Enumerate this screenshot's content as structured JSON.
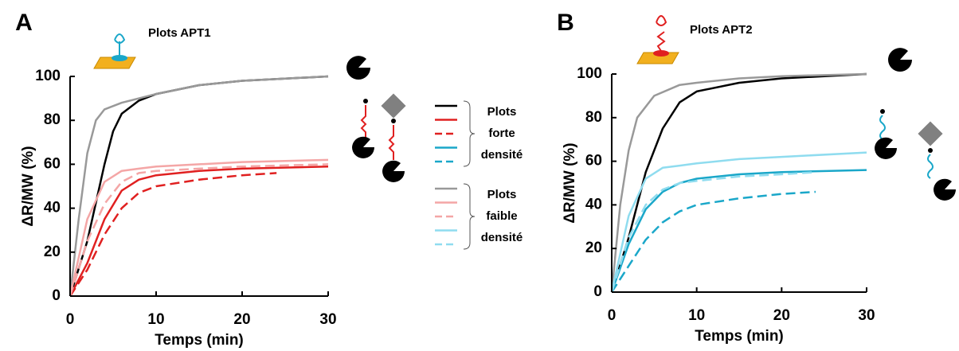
{
  "chart_data": [
    {
      "type": "line",
      "panel": "A",
      "title": "Plots APT1",
      "x_label": "Temps (min)",
      "y_label": "ΔR/MW (%)",
      "xlim": [
        0,
        30
      ],
      "ylim": [
        0,
        100
      ],
      "xticks": [
        0,
        10,
        20,
        30
      ],
      "yticks": [
        0,
        20,
        40,
        60,
        80,
        100
      ],
      "series": [
        {
          "color": "#000000",
          "dash": false,
          "x": [
            0,
            2,
            4,
            5,
            6,
            8,
            10,
            15,
            20,
            25,
            30
          ],
          "values": [
            0,
            25,
            60,
            75,
            83,
            89,
            92,
            96,
            98,
            99,
            100
          ]
        },
        {
          "color": "#e02020",
          "dash": false,
          "x": [
            0,
            2,
            4,
            6,
            8,
            10,
            15,
            20,
            30
          ],
          "values": [
            0,
            15,
            35,
            48,
            53,
            55,
            57,
            58,
            59
          ]
        },
        {
          "color": "#e02020",
          "dash": true,
          "x": [
            0,
            2,
            4,
            6,
            8,
            10,
            15,
            20,
            24
          ],
          "values": [
            0,
            12,
            28,
            40,
            47,
            50,
            53,
            55,
            56
          ]
        },
        {
          "color": "#999999",
          "dash": false,
          "x": [
            0,
            1,
            2,
            3,
            4,
            6,
            8,
            10,
            15,
            20,
            30
          ],
          "values": [
            0,
            35,
            65,
            80,
            85,
            88,
            90,
            92,
            96,
            98,
            100
          ]
        },
        {
          "color": "#f4a6a6",
          "dash": false,
          "x": [
            0,
            2,
            4,
            6,
            8,
            10,
            15,
            20,
            30
          ],
          "values": [
            0,
            35,
            52,
            57,
            58,
            59,
            60,
            61,
            62
          ]
        },
        {
          "color": "#f4a6a6",
          "dash": true,
          "x": [
            0,
            2,
            4,
            6,
            8,
            10,
            15,
            20,
            30
          ],
          "values": [
            0,
            25,
            42,
            52,
            56,
            57,
            58,
            59,
            60
          ]
        }
      ]
    },
    {
      "type": "line",
      "panel": "B",
      "title": "Plots APT2",
      "x_label": "Temps (min)",
      "y_label": "ΔR/MW (%)",
      "xlim": [
        0,
        30
      ],
      "ylim": [
        0,
        100
      ],
      "xticks": [
        0,
        10,
        20,
        30
      ],
      "yticks": [
        0,
        20,
        40,
        60,
        80,
        100
      ],
      "series": [
        {
          "color": "#000000",
          "dash": false,
          "x": [
            0,
            2,
            4,
            6,
            8,
            10,
            15,
            20,
            30
          ],
          "values": [
            0,
            25,
            55,
            75,
            87,
            92,
            96,
            98,
            100
          ]
        },
        {
          "color": "#999999",
          "dash": false,
          "x": [
            0,
            1,
            2,
            3,
            5,
            8,
            10,
            15,
            20,
            30
          ],
          "values": [
            0,
            40,
            65,
            80,
            90,
            95,
            96,
            98,
            99,
            100
          ]
        },
        {
          "color": "#1aa7c9",
          "dash": false,
          "x": [
            0,
            2,
            4,
            6,
            8,
            10,
            15,
            20,
            30
          ],
          "values": [
            0,
            22,
            38,
            46,
            50,
            52,
            54,
            55,
            56
          ]
        },
        {
          "color": "#1aa7c9",
          "dash": true,
          "x": [
            0,
            2,
            4,
            6,
            8,
            10,
            15,
            20,
            24
          ],
          "values": [
            0,
            12,
            24,
            32,
            37,
            40,
            43,
            45,
            46
          ]
        },
        {
          "color": "#8fdcef",
          "dash": false,
          "x": [
            0,
            2,
            4,
            6,
            8,
            10,
            15,
            20,
            30
          ],
          "values": [
            0,
            35,
            52,
            57,
            58,
            59,
            61,
            62,
            64
          ]
        },
        {
          "color": "#8fdcef",
          "dash": true,
          "x": [
            0,
            2,
            4,
            6,
            8,
            10,
            15,
            20,
            24
          ],
          "values": [
            0,
            25,
            40,
            47,
            50,
            51,
            53,
            54,
            55
          ]
        }
      ]
    }
  ],
  "legend": {
    "groups": [
      {
        "lines": [
          "Plots",
          "forte",
          "densité"
        ],
        "entries": [
          {
            "color": "#000000",
            "dash": false
          },
          {
            "color": "#e02020",
            "dash": false
          },
          {
            "color": "#e02020",
            "dash": true
          },
          {
            "color": "#1aa7c9",
            "dash": false
          },
          {
            "color": "#1aa7c9",
            "dash": true
          }
        ]
      },
      {
        "lines": [
          "Plots",
          "faible",
          "densité"
        ],
        "entries": [
          {
            "color": "#999999",
            "dash": false
          },
          {
            "color": "#f4a6a6",
            "dash": false
          },
          {
            "color": "#f4a6a6",
            "dash": true
          },
          {
            "color": "#8fdcef",
            "dash": false
          },
          {
            "color": "#8fdcef",
            "dash": true
          }
        ]
      }
    ]
  }
}
